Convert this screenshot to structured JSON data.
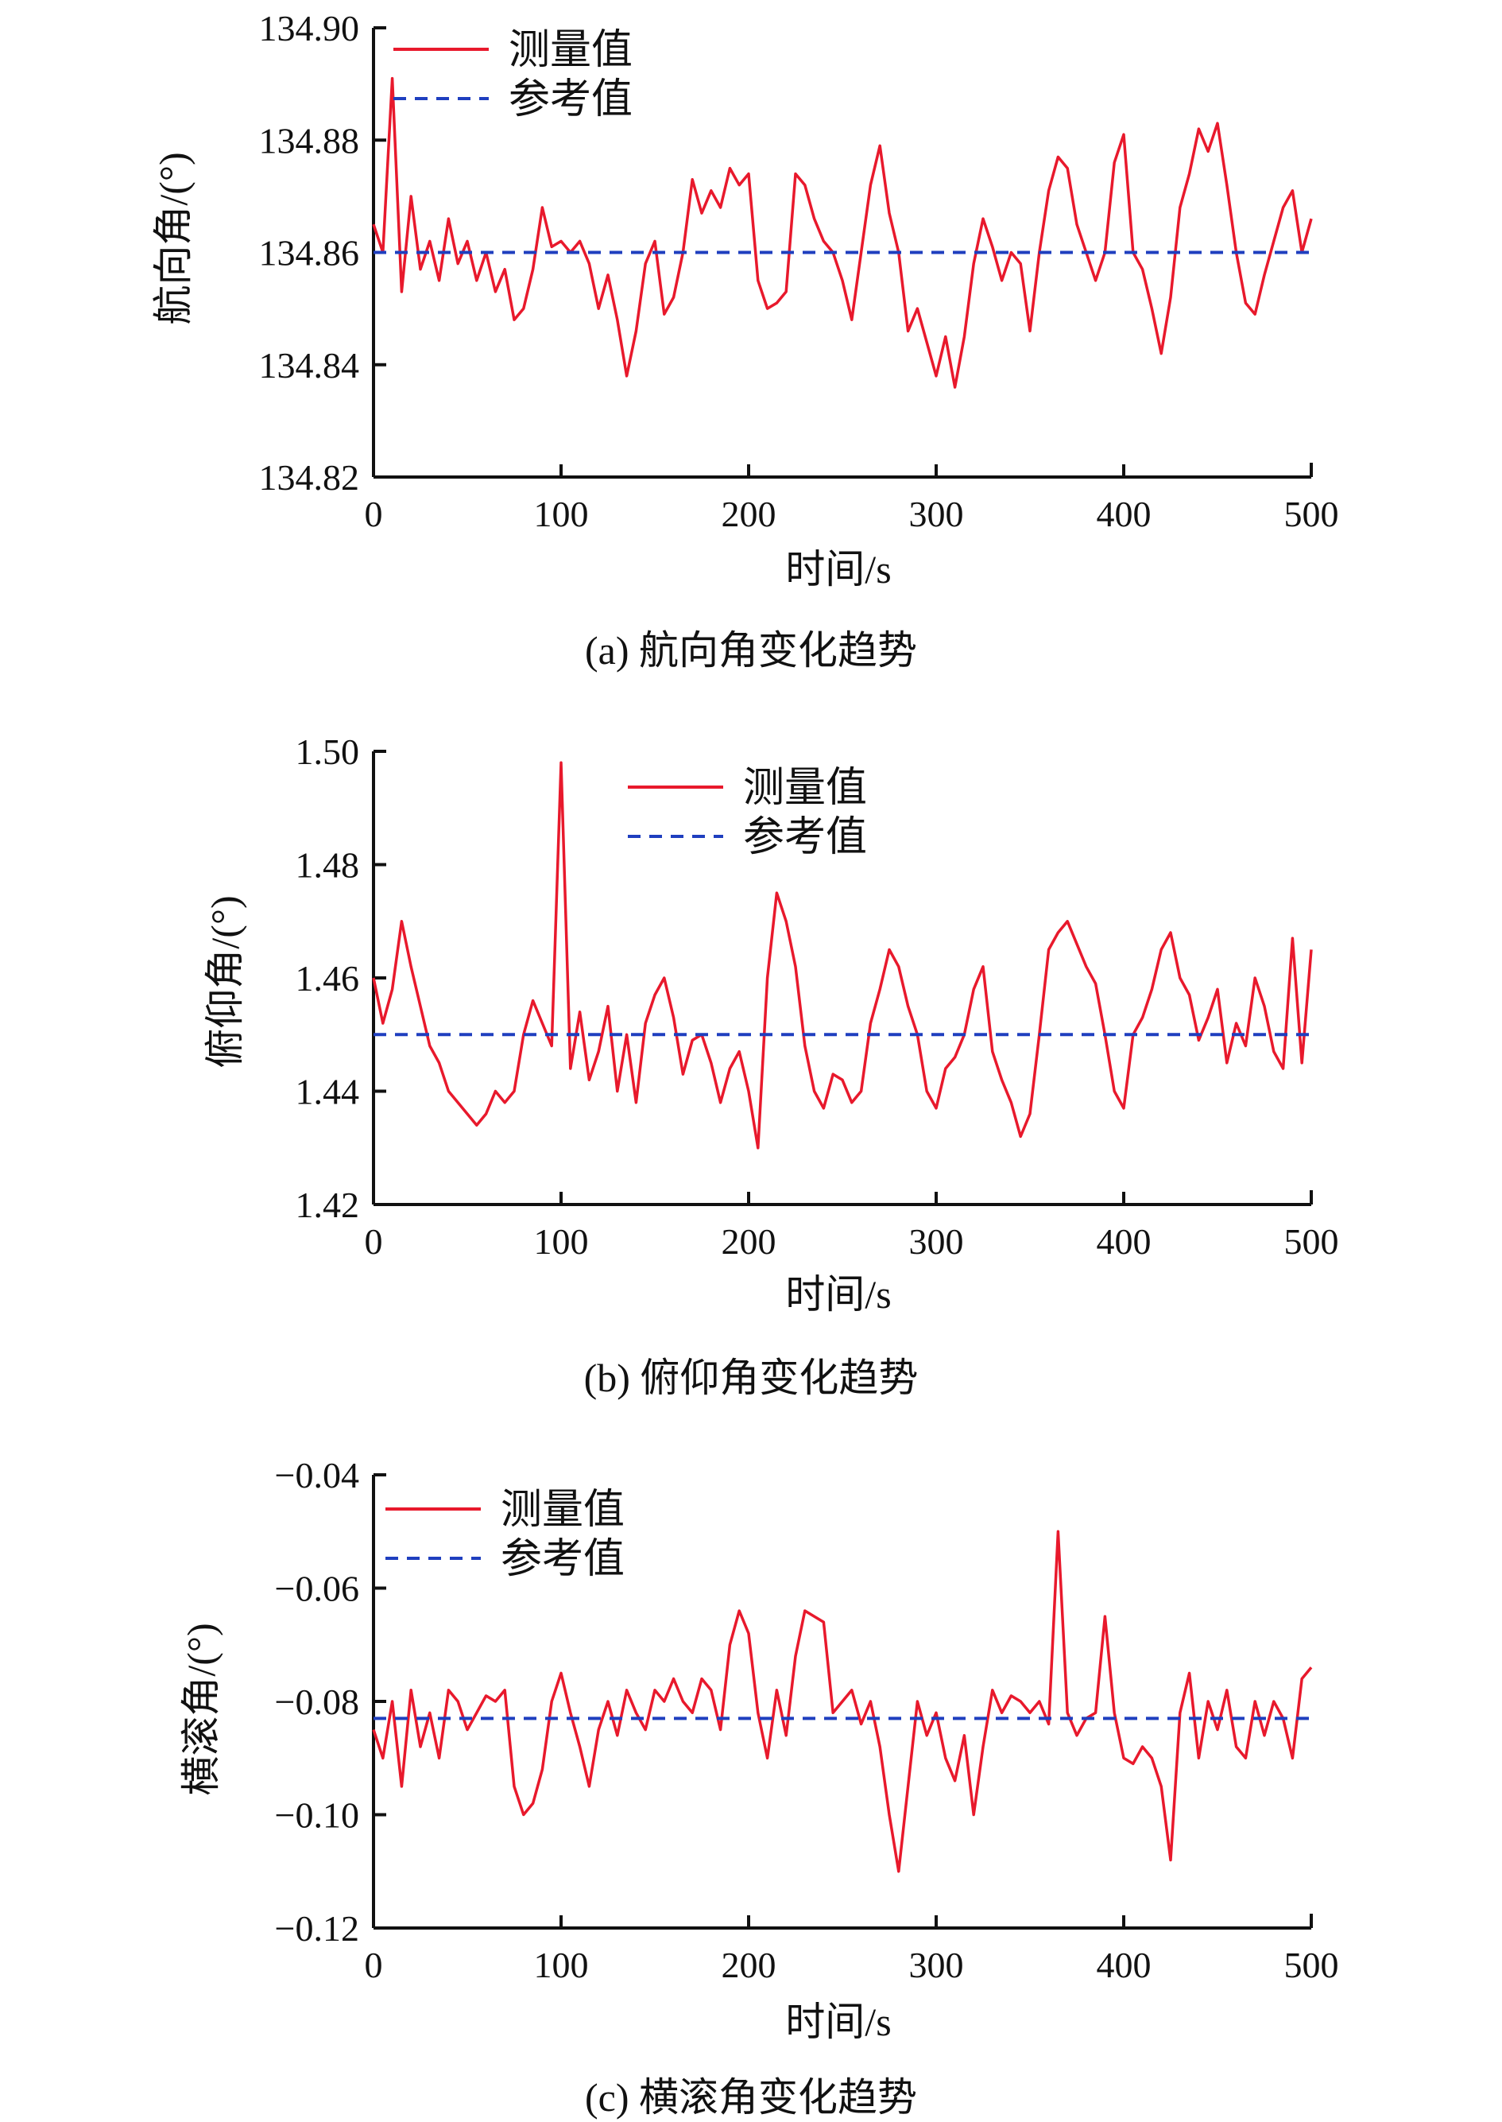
{
  "figure": {
    "panels": [
      {
        "caption": "(a)  航向角变化趋势",
        "xlabel": "时间/s",
        "ylabel": "航向角/(°)",
        "legend": {
          "measured": "测量值",
          "reference": "参考值",
          "position": "top-left"
        },
        "yticks": [
          "134.82",
          "134.84",
          "134.86",
          "134.88",
          "134.90"
        ],
        "xticks": [
          "0",
          "100",
          "200",
          "300",
          "400",
          "500"
        ]
      },
      {
        "caption": "(b)  俯仰角变化趋势",
        "xlabel": "时间/s",
        "ylabel": "俯仰角/(°)",
        "legend": {
          "measured": "测量值",
          "reference": "参考值",
          "position": "top-center"
        },
        "yticks": [
          "1.42",
          "1.44",
          "1.46",
          "1.48",
          "1.50"
        ],
        "xticks": [
          "0",
          "100",
          "200",
          "300",
          "400",
          "500"
        ]
      },
      {
        "caption": "(c)  横滚角变化趋势",
        "xlabel": "时间/s",
        "ylabel": "横滚角/(°)",
        "legend": {
          "measured": "测量值",
          "reference": "参考值",
          "position": "top-left"
        },
        "yticks": [
          "−0.12",
          "−0.10",
          "−0.08",
          "−0.06",
          "−0.04"
        ],
        "xticks": [
          "0",
          "100",
          "200",
          "300",
          "400",
          "500"
        ]
      }
    ]
  },
  "chart_data": [
    {
      "type": "line",
      "xlim": [
        0,
        500
      ],
      "ylim": [
        134.82,
        134.9
      ],
      "grid": false,
      "series": [
        {
          "name": "测量值",
          "color": "#e8192c",
          "style": "solid",
          "x": [
            0,
            5,
            10,
            15,
            20,
            25,
            30,
            35,
            40,
            45,
            50,
            55,
            60,
            65,
            70,
            75,
            80,
            85,
            90,
            95,
            100,
            105,
            110,
            115,
            120,
            125,
            130,
            135,
            140,
            145,
            150,
            155,
            160,
            165,
            170,
            175,
            180,
            185,
            190,
            195,
            200,
            205,
            210,
            215,
            220,
            225,
            230,
            235,
            240,
            245,
            250,
            255,
            260,
            265,
            270,
            275,
            280,
            285,
            290,
            295,
            300,
            305,
            310,
            315,
            320,
            325,
            330,
            335,
            340,
            345,
            350,
            355,
            360,
            365,
            370,
            375,
            380,
            385,
            390,
            395,
            400,
            405,
            410,
            415,
            420,
            425,
            430,
            435,
            440,
            445,
            450,
            455,
            460,
            465,
            470,
            475,
            480,
            485,
            490,
            495,
            500
          ],
          "y": [
            134.865,
            134.86,
            134.891,
            134.853,
            134.87,
            134.857,
            134.862,
            134.855,
            134.866,
            134.858,
            134.862,
            134.855,
            134.86,
            134.853,
            134.857,
            134.848,
            134.85,
            134.857,
            134.868,
            134.861,
            134.862,
            134.86,
            134.862,
            134.858,
            134.85,
            134.856,
            134.848,
            134.838,
            134.846,
            134.858,
            134.862,
            134.849,
            134.852,
            134.86,
            134.873,
            134.867,
            134.871,
            134.868,
            134.875,
            134.872,
            134.874,
            134.855,
            134.85,
            134.851,
            134.853,
            134.874,
            134.872,
            134.866,
            134.862,
            134.86,
            134.855,
            134.848,
            134.86,
            134.872,
            134.879,
            134.867,
            134.86,
            134.846,
            134.85,
            134.844,
            134.838,
            134.845,
            134.836,
            134.845,
            134.858,
            134.866,
            134.861,
            134.855,
            134.86,
            134.858,
            134.846,
            134.86,
            134.871,
            134.877,
            134.875,
            134.865,
            134.86,
            134.855,
            134.86,
            134.876,
            134.881,
            134.86,
            134.857,
            134.85,
            134.842,
            134.852,
            134.868,
            134.874,
            134.882,
            134.878,
            134.883,
            134.872,
            134.86,
            134.851,
            134.849,
            134.856,
            134.862,
            134.868,
            134.871,
            134.86,
            134.866
          ]
        },
        {
          "name": "参考值",
          "color": "#1f3fbf",
          "style": "dashed",
          "x": [
            0,
            500
          ],
          "y": [
            134.86,
            134.86
          ]
        }
      ]
    },
    {
      "type": "line",
      "xlim": [
        0,
        500
      ],
      "ylim": [
        1.42,
        1.5
      ],
      "grid": false,
      "series": [
        {
          "name": "测量值",
          "color": "#e8192c",
          "style": "solid",
          "x": [
            0,
            5,
            10,
            15,
            20,
            25,
            30,
            35,
            40,
            45,
            50,
            55,
            60,
            65,
            70,
            75,
            80,
            85,
            90,
            95,
            100,
            105,
            110,
            115,
            120,
            125,
            130,
            135,
            140,
            145,
            150,
            155,
            160,
            165,
            170,
            175,
            180,
            185,
            190,
            195,
            200,
            205,
            210,
            215,
            220,
            225,
            230,
            235,
            240,
            245,
            250,
            255,
            260,
            265,
            270,
            275,
            280,
            285,
            290,
            295,
            300,
            305,
            310,
            315,
            320,
            325,
            330,
            335,
            340,
            345,
            350,
            355,
            360,
            365,
            370,
            375,
            380,
            385,
            390,
            395,
            400,
            405,
            410,
            415,
            420,
            425,
            430,
            435,
            440,
            445,
            450,
            455,
            460,
            465,
            470,
            475,
            480,
            485,
            490,
            495,
            500
          ],
          "y": [
            1.46,
            1.452,
            1.458,
            1.47,
            1.462,
            1.455,
            1.448,
            1.445,
            1.44,
            1.438,
            1.436,
            1.434,
            1.436,
            1.44,
            1.438,
            1.44,
            1.45,
            1.456,
            1.452,
            1.448,
            1.498,
            1.444,
            1.454,
            1.442,
            1.447,
            1.455,
            1.44,
            1.45,
            1.438,
            1.452,
            1.457,
            1.46,
            1.453,
            1.443,
            1.449,
            1.45,
            1.445,
            1.438,
            1.444,
            1.447,
            1.44,
            1.43,
            1.46,
            1.475,
            1.47,
            1.462,
            1.448,
            1.44,
            1.437,
            1.443,
            1.442,
            1.438,
            1.44,
            1.452,
            1.458,
            1.465,
            1.462,
            1.455,
            1.45,
            1.44,
            1.437,
            1.444,
            1.446,
            1.45,
            1.458,
            1.462,
            1.447,
            1.442,
            1.438,
            1.432,
            1.436,
            1.45,
            1.465,
            1.468,
            1.47,
            1.466,
            1.462,
            1.459,
            1.45,
            1.44,
            1.437,
            1.45,
            1.453,
            1.458,
            1.465,
            1.468,
            1.46,
            1.457,
            1.449,
            1.453,
            1.458,
            1.445,
            1.452,
            1.448,
            1.46,
            1.455,
            1.447,
            1.444,
            1.467,
            1.445,
            1.465
          ]
        },
        {
          "name": "参考值",
          "color": "#1f3fbf",
          "style": "dashed",
          "x": [
            0,
            500
          ],
          "y": [
            1.45,
            1.45
          ]
        }
      ]
    },
    {
      "type": "line",
      "xlim": [
        0,
        500
      ],
      "ylim": [
        -0.12,
        -0.04
      ],
      "grid": false,
      "series": [
        {
          "name": "测量值",
          "color": "#e8192c",
          "style": "solid",
          "x": [
            0,
            5,
            10,
            15,
            20,
            25,
            30,
            35,
            40,
            45,
            50,
            55,
            60,
            65,
            70,
            75,
            80,
            85,
            90,
            95,
            100,
            105,
            110,
            115,
            120,
            125,
            130,
            135,
            140,
            145,
            150,
            155,
            160,
            165,
            170,
            175,
            180,
            185,
            190,
            195,
            200,
            205,
            210,
            215,
            220,
            225,
            230,
            235,
            240,
            245,
            250,
            255,
            260,
            265,
            270,
            275,
            280,
            285,
            290,
            295,
            300,
            305,
            310,
            315,
            320,
            325,
            330,
            335,
            340,
            345,
            350,
            355,
            360,
            365,
            370,
            375,
            380,
            385,
            390,
            395,
            400,
            405,
            410,
            415,
            420,
            425,
            430,
            435,
            440,
            445,
            450,
            455,
            460,
            465,
            470,
            475,
            480,
            485,
            490,
            495,
            500
          ],
          "y": [
            -0.085,
            -0.09,
            -0.08,
            -0.095,
            -0.078,
            -0.088,
            -0.082,
            -0.09,
            -0.078,
            -0.08,
            -0.085,
            -0.082,
            -0.079,
            -0.08,
            -0.078,
            -0.095,
            -0.1,
            -0.098,
            -0.092,
            -0.08,
            -0.075,
            -0.082,
            -0.088,
            -0.095,
            -0.085,
            -0.08,
            -0.086,
            -0.078,
            -0.082,
            -0.085,
            -0.078,
            -0.08,
            -0.076,
            -0.08,
            -0.082,
            -0.076,
            -0.078,
            -0.085,
            -0.07,
            -0.064,
            -0.068,
            -0.082,
            -0.09,
            -0.078,
            -0.086,
            -0.072,
            -0.064,
            -0.065,
            -0.066,
            -0.082,
            -0.08,
            -0.078,
            -0.084,
            -0.08,
            -0.088,
            -0.1,
            -0.11,
            -0.095,
            -0.08,
            -0.086,
            -0.082,
            -0.09,
            -0.094,
            -0.086,
            -0.1,
            -0.088,
            -0.078,
            -0.082,
            -0.079,
            -0.08,
            -0.082,
            -0.08,
            -0.084,
            -0.05,
            -0.082,
            -0.086,
            -0.083,
            -0.082,
            -0.065,
            -0.082,
            -0.09,
            -0.091,
            -0.088,
            -0.09,
            -0.095,
            -0.108,
            -0.082,
            -0.075,
            -0.09,
            -0.08,
            -0.085,
            -0.078,
            -0.088,
            -0.09,
            -0.08,
            -0.086,
            -0.08,
            -0.083,
            -0.09,
            -0.076,
            -0.074
          ]
        },
        {
          "name": "参考值",
          "color": "#1f3fbf",
          "style": "dashed",
          "x": [
            0,
            500
          ],
          "y": [
            -0.083,
            -0.083
          ]
        }
      ]
    }
  ]
}
